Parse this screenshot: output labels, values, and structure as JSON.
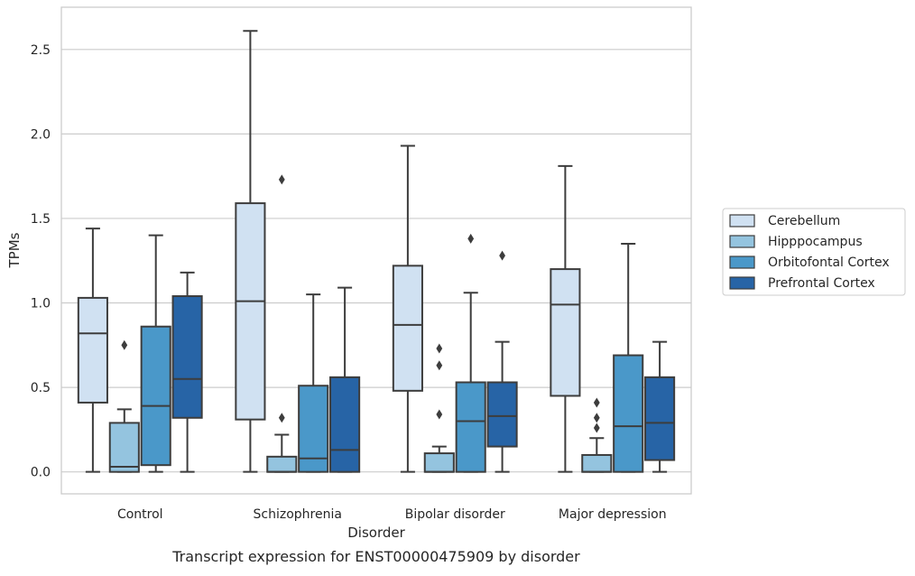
{
  "chart_data": {
    "type": "box",
    "caption": "Transcript expression for ENST00000475909 by disorder",
    "xlabel": "Disorder",
    "ylabel": "TPMs",
    "ylim": [
      -0.13,
      2.75
    ],
    "yticks": [
      "0.0",
      "0.5",
      "1.0",
      "1.5",
      "2.0",
      "2.5"
    ],
    "ytick_values": [
      0.0,
      0.5,
      1.0,
      1.5,
      2.0,
      2.5
    ],
    "grid": true,
    "legend_position": "right",
    "categories": [
      "Control",
      "Schizophrenia",
      "Bipolar disorder",
      "Major depression"
    ],
    "series": [
      {
        "name": "Cerebellum",
        "color": "#d0e1f2",
        "boxes": [
          {
            "whislo": 0.0,
            "q1": 0.41,
            "med": 0.82,
            "q3": 1.03,
            "whishi": 1.44,
            "fliers": []
          },
          {
            "whislo": 0.0,
            "q1": 0.31,
            "med": 1.01,
            "q3": 1.59,
            "whishi": 2.61,
            "fliers": []
          },
          {
            "whislo": 0.0,
            "q1": 0.48,
            "med": 0.87,
            "q3": 1.22,
            "whishi": 1.93,
            "fliers": []
          },
          {
            "whislo": 0.0,
            "q1": 0.45,
            "med": 0.99,
            "q3": 1.2,
            "whishi": 1.81,
            "fliers": []
          }
        ]
      },
      {
        "name": "Hipppocampus",
        "color": "#94c4df",
        "boxes": [
          {
            "whislo": 0.0,
            "q1": 0.0,
            "med": 0.03,
            "q3": 0.29,
            "whishi": 0.37,
            "fliers": [
              0.75
            ]
          },
          {
            "whislo": 0.0,
            "q1": 0.0,
            "med": 0.0,
            "q3": 0.09,
            "whishi": 0.22,
            "fliers": [
              0.32,
              1.73
            ]
          },
          {
            "whislo": 0.0,
            "q1": 0.0,
            "med": 0.0,
            "q3": 0.11,
            "whishi": 0.15,
            "fliers": [
              0.34,
              0.63,
              0.73
            ]
          },
          {
            "whislo": 0.0,
            "q1": 0.0,
            "med": 0.0,
            "q3": 0.1,
            "whishi": 0.2,
            "fliers": [
              0.26,
              0.32,
              0.41
            ]
          }
        ]
      },
      {
        "name": "Orbitofontal Cortex",
        "color": "#4a98c9",
        "boxes": [
          {
            "whislo": 0.0,
            "q1": 0.04,
            "med": 0.39,
            "q3": 0.86,
            "whishi": 1.4,
            "fliers": []
          },
          {
            "whislo": 0.0,
            "q1": 0.0,
            "med": 0.08,
            "q3": 0.51,
            "whishi": 1.05,
            "fliers": []
          },
          {
            "whislo": 0.0,
            "q1": 0.0,
            "med": 0.3,
            "q3": 0.53,
            "whishi": 1.06,
            "fliers": [
              1.38
            ]
          },
          {
            "whislo": 0.0,
            "q1": 0.0,
            "med": 0.27,
            "q3": 0.69,
            "whishi": 1.35,
            "fliers": []
          }
        ]
      },
      {
        "name": "Prefrontal Cortex",
        "color": "#2764a6",
        "boxes": [
          {
            "whislo": 0.0,
            "q1": 0.32,
            "med": 0.55,
            "q3": 1.04,
            "whishi": 1.18,
            "fliers": []
          },
          {
            "whislo": 0.0,
            "q1": 0.0,
            "med": 0.13,
            "q3": 0.56,
            "whishi": 1.09,
            "fliers": []
          },
          {
            "whislo": 0.0,
            "q1": 0.15,
            "med": 0.33,
            "q3": 0.53,
            "whishi": 0.77,
            "fliers": [
              1.28
            ]
          },
          {
            "whislo": 0.0,
            "q1": 0.07,
            "med": 0.29,
            "q3": 0.56,
            "whishi": 0.77,
            "fliers": []
          }
        ]
      }
    ]
  }
}
